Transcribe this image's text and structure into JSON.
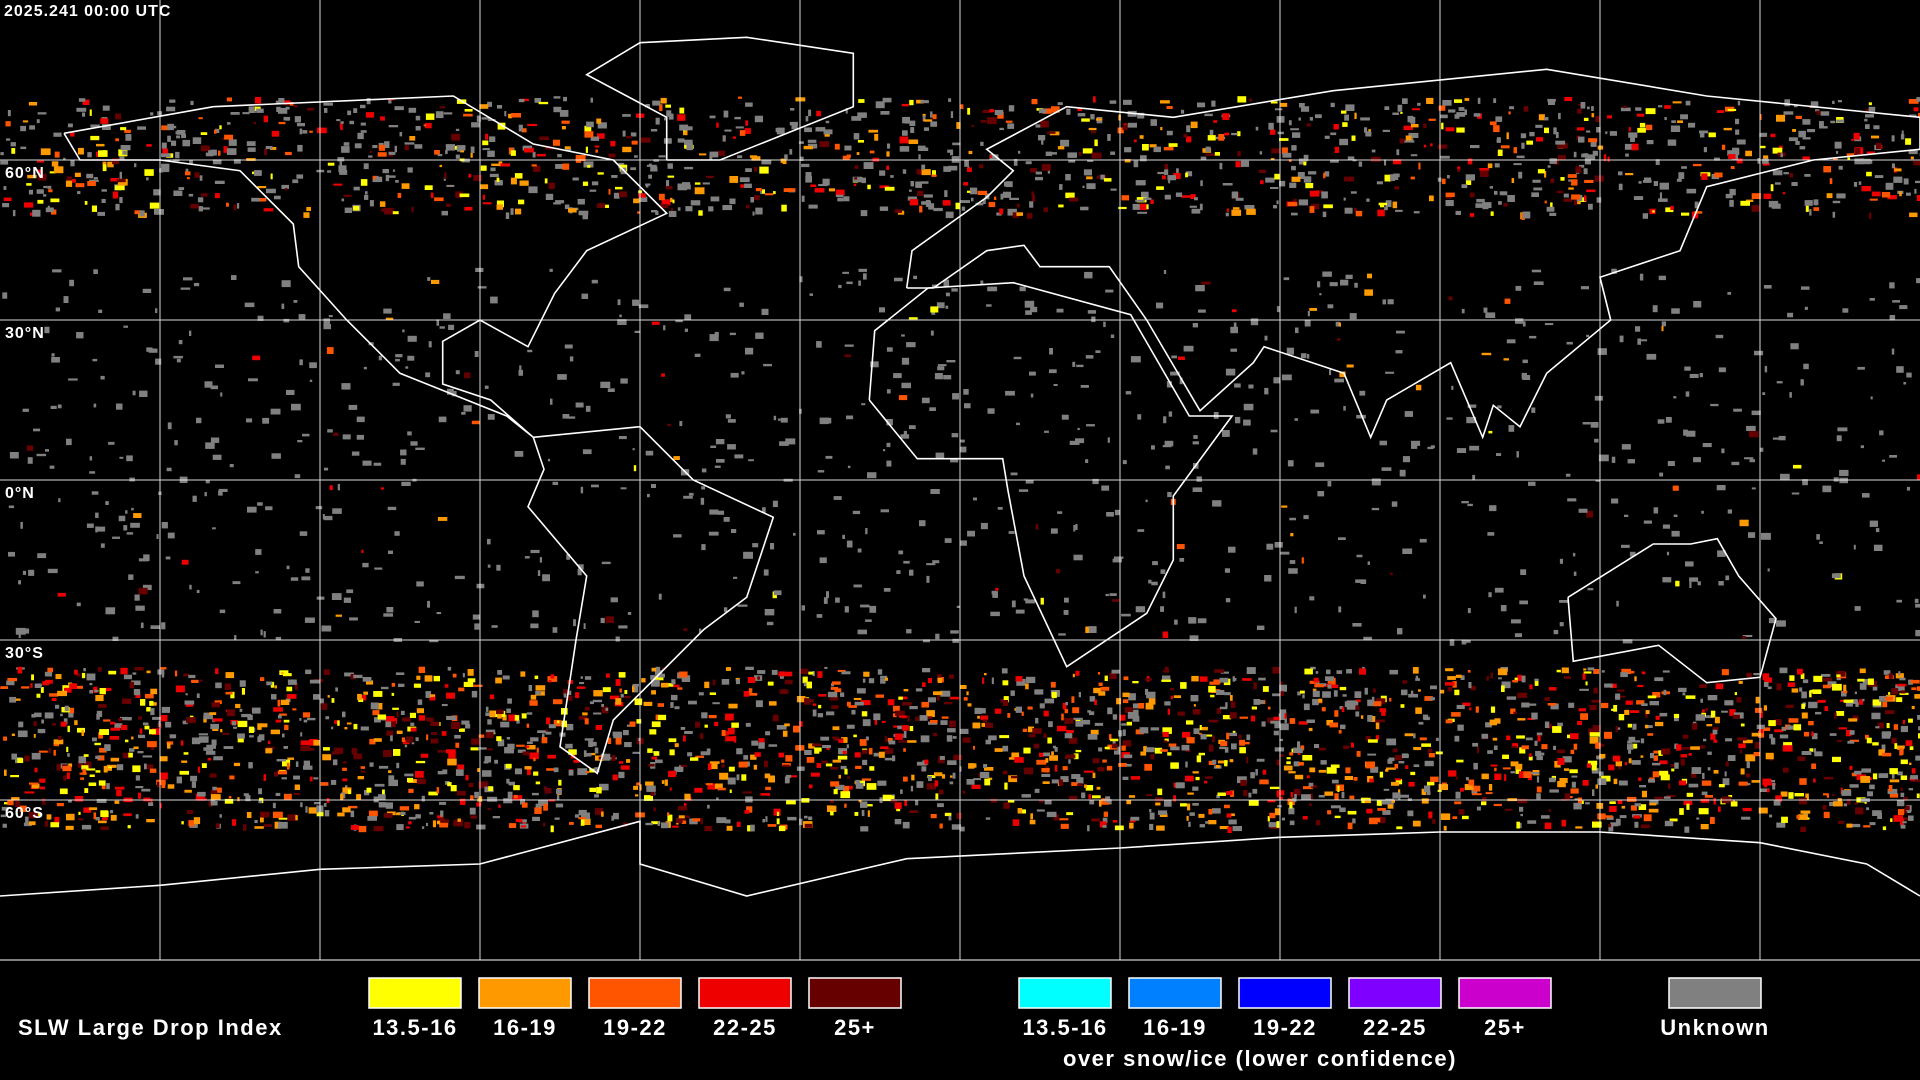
{
  "header": {
    "timestamp": "2025.241 00:00 UTC"
  },
  "map": {
    "lat_labels": [
      "60°N",
      "30°N",
      "0°N",
      "30°S",
      "60°S"
    ]
  },
  "legend": {
    "title": "SLW Large Drop Index",
    "items": [
      {
        "label": "13.5-16",
        "color": "#ffff00"
      },
      {
        "label": "16-19",
        "color": "#ff9900"
      },
      {
        "label": "19-22",
        "color": "#ff5500"
      },
      {
        "label": "22-25",
        "color": "#ee0000"
      },
      {
        "label": "25+",
        "color": "#660000"
      }
    ],
    "snow_items": [
      {
        "label": "13.5-16",
        "color": "#00ffff"
      },
      {
        "label": "16-19",
        "color": "#0080ff"
      },
      {
        "label": "19-22",
        "color": "#0000ff"
      },
      {
        "label": "22-25",
        "color": "#7f00ff"
      },
      {
        "label": "25+",
        "color": "#cc00cc"
      }
    ],
    "snow_caption": "over snow/ice (lower confidence)",
    "unknown": {
      "label": "Unknown",
      "color": "#808080"
    }
  }
}
